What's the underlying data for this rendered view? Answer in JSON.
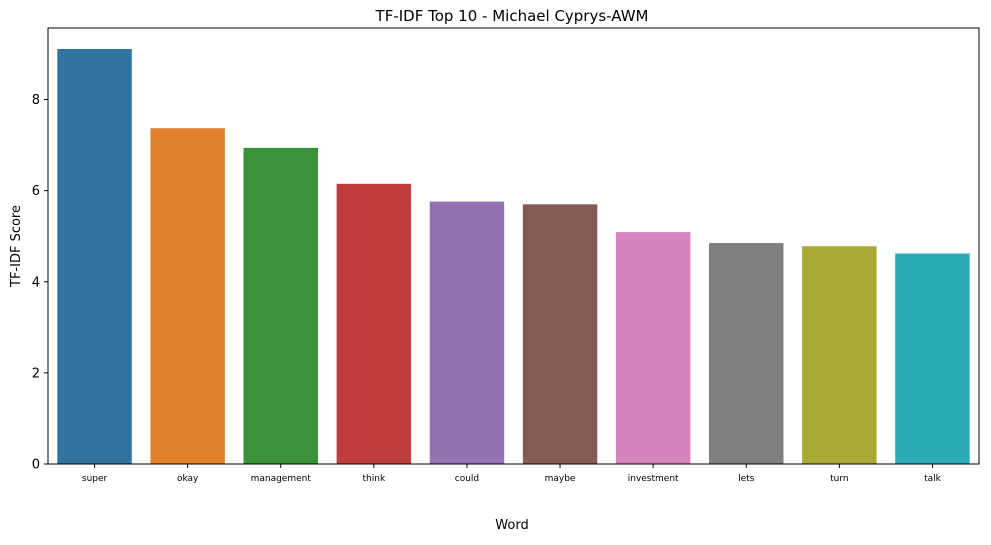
{
  "chart_data": {
    "type": "bar",
    "title": "TF-IDF Top 10 - Michael Cyprys-AWM",
    "xlabel": "Word",
    "ylabel": "TF-IDF Score",
    "categories": [
      "super",
      "okay",
      "management",
      "think",
      "could",
      "maybe",
      "investment",
      "lets",
      "turn",
      "talk"
    ],
    "values": [
      9.11,
      7.37,
      6.94,
      6.15,
      5.76,
      5.7,
      5.09,
      4.85,
      4.78,
      4.62
    ],
    "colors": [
      "#3274a1",
      "#e1812c",
      "#3a923a",
      "#c03d3e",
      "#9372b2",
      "#845b53",
      "#d684bd",
      "#7f7f7f",
      "#a9aa35",
      "#2eabb8"
    ],
    "ylim": [
      0,
      9.57
    ],
    "yticks": [
      0,
      2,
      4,
      6,
      8
    ],
    "grid": false,
    "legend": "none"
  }
}
